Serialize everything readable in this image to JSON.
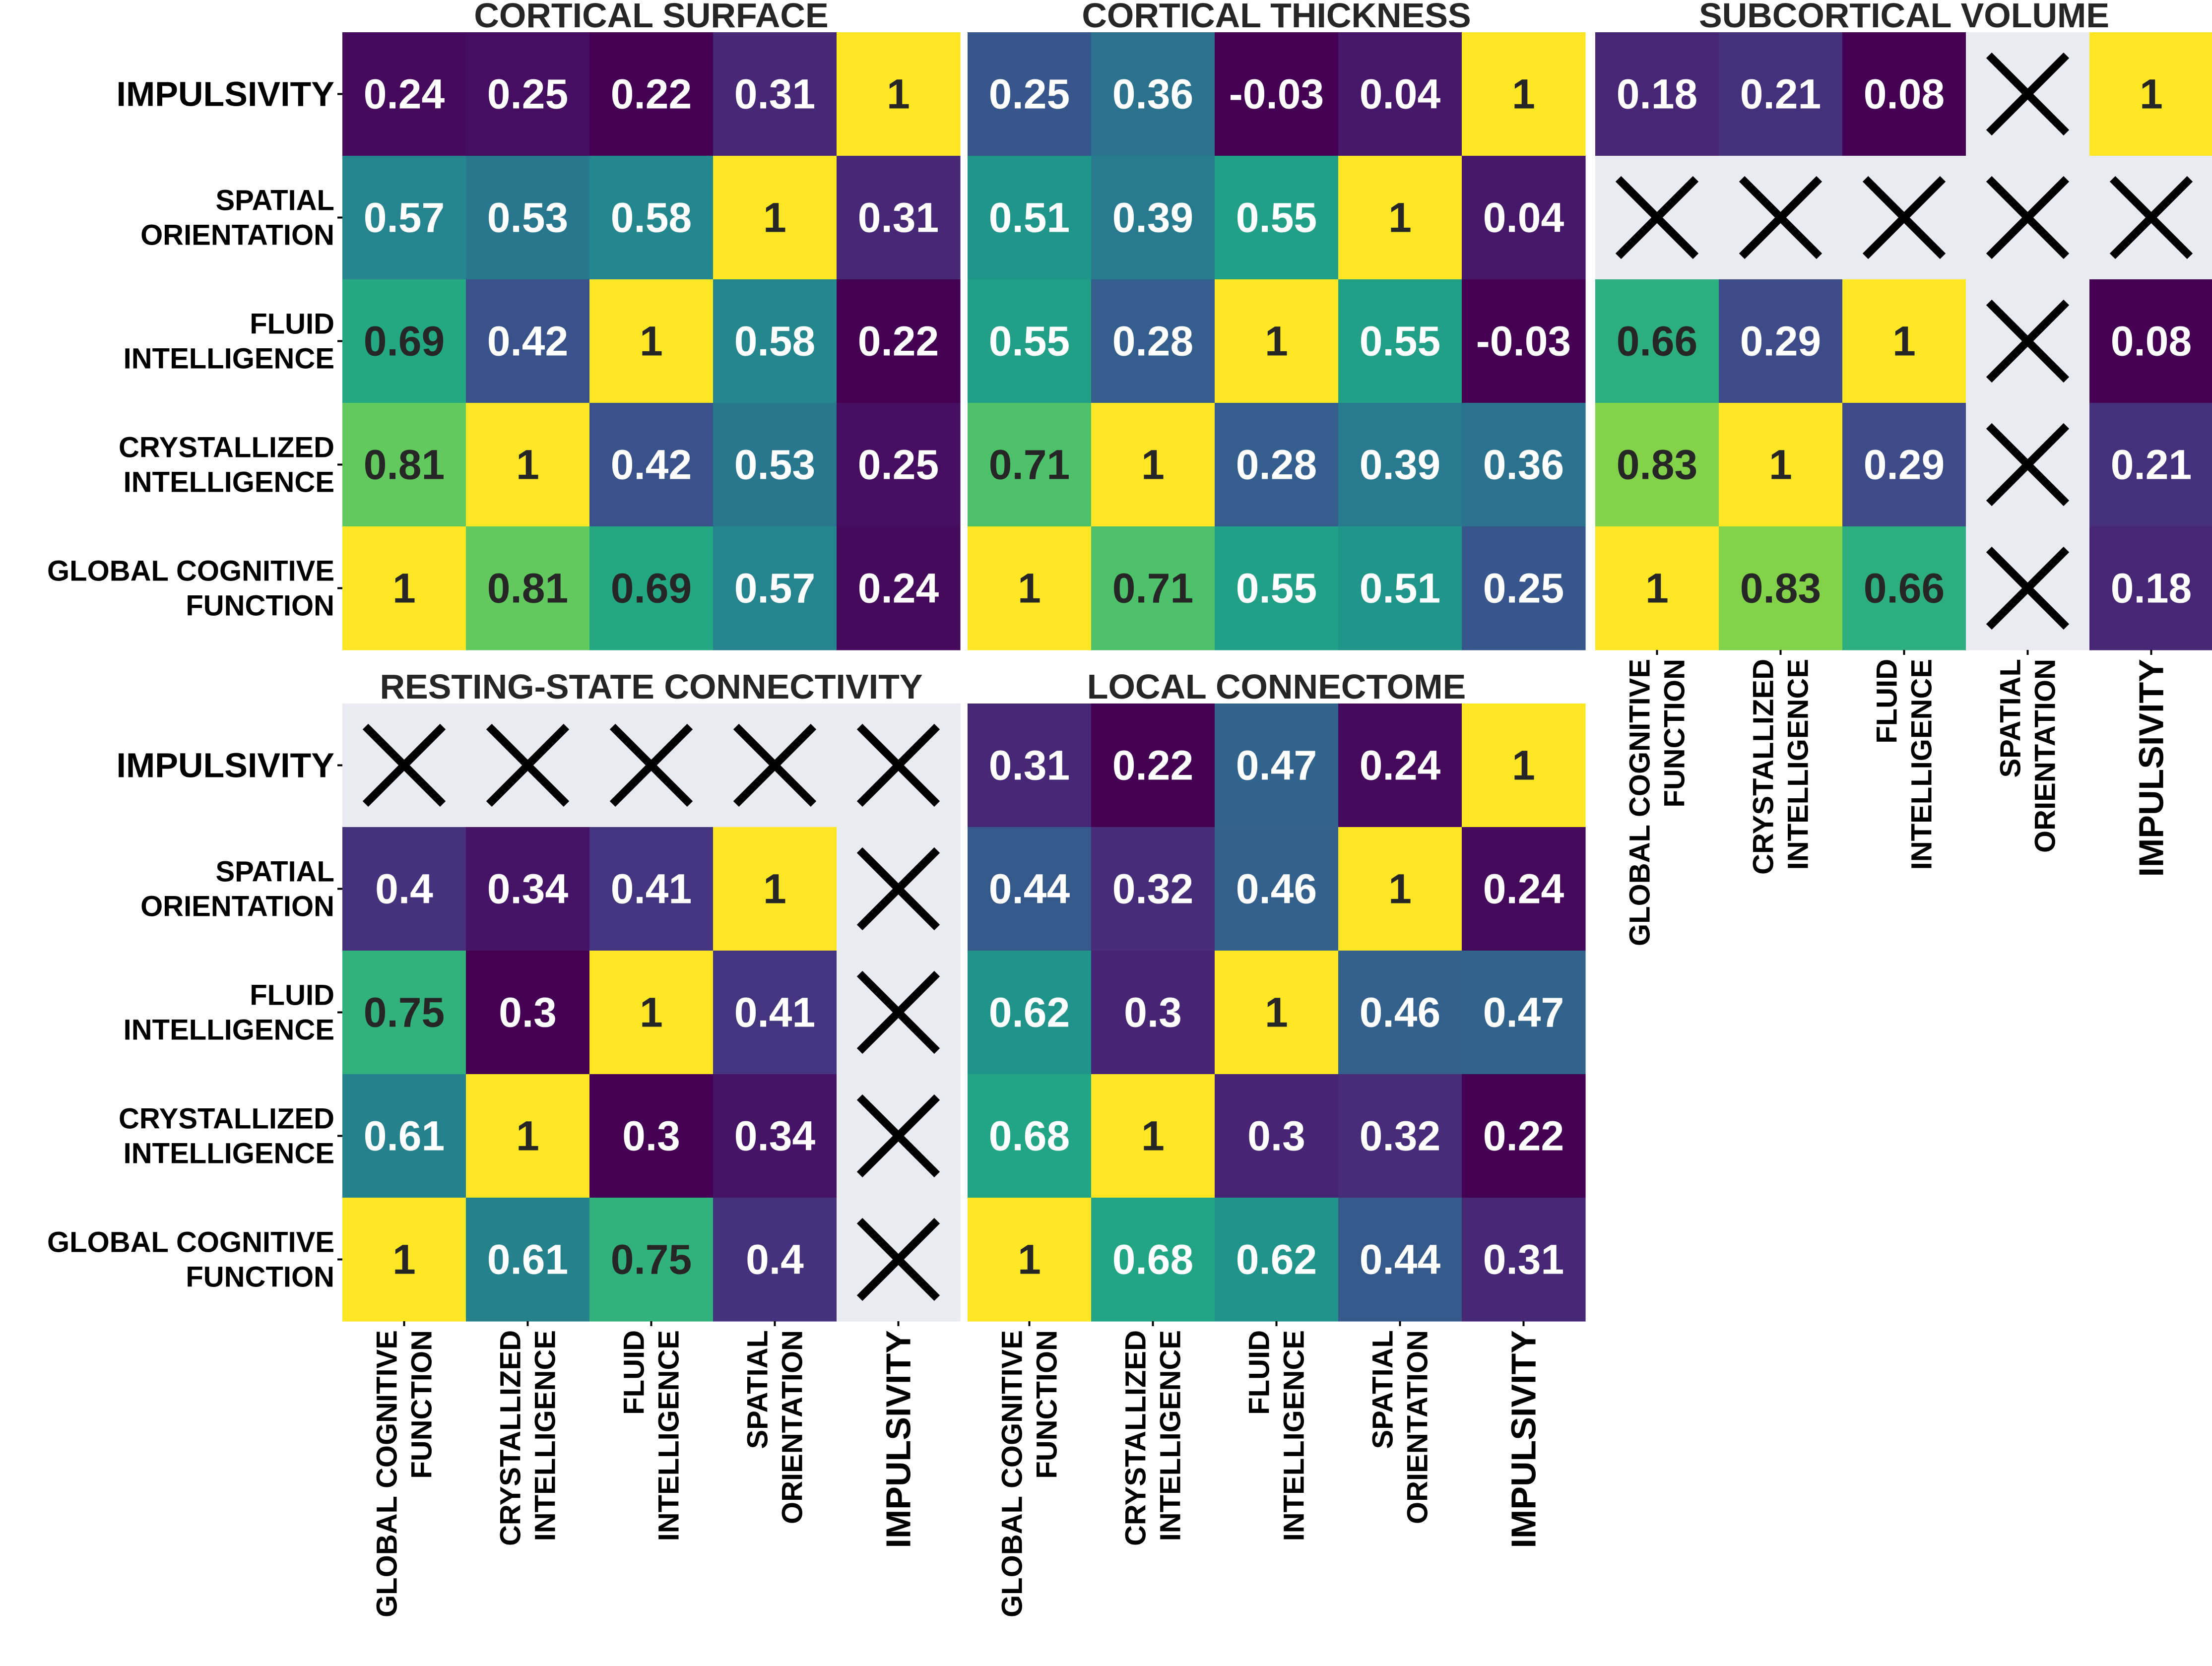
{
  "rows": [
    "IMPULSIVITY",
    "SPATIAL ORIENTATION",
    "FLUID INTELLIGENCE",
    "CRYSTALLIZED INTELLIGENCE",
    "GLOBAL COGNITIVE FUNCTION"
  ],
  "row_label_lines": [
    [
      "IMPULSIVITY"
    ],
    [
      "SPATIAL",
      "ORIENTATION"
    ],
    [
      "FLUID",
      "INTELLIGENCE"
    ],
    [
      "CRYSTALLIZED",
      "INTELLIGENCE"
    ],
    [
      "GLOBAL COGNITIVE",
      "FUNCTION"
    ]
  ],
  "columns": [
    "GLOBAL COGNITIVE FUNCTION",
    "CRYSTALLIZED INTELLIGENCE",
    "FLUID INTELLIGENCE",
    "SPATIAL ORIENTATION",
    "IMPULSIVITY"
  ],
  "col_label_lines": [
    [
      "GLOBAL COGNITIVE",
      "FUNCTION"
    ],
    [
      "CRYSTALLIZED",
      "INTELLIGENCE"
    ],
    [
      "FLUID",
      "INTELLIGENCE"
    ],
    [
      "SPATIAL",
      "ORIENTATION"
    ],
    [
      "IMPULSIVITY"
    ]
  ],
  "missing_marker": "X",
  "colors": {
    "missing_background": "#eaeaf2",
    "light_text": "#ffffff",
    "dark_text": "#262626",
    "colormap": "viridis"
  },
  "chart_data": [
    {
      "type": "heatmap",
      "title": "CORTICAL SURFACE",
      "values": [
        [
          0.24,
          0.25,
          0.22,
          0.31,
          1
        ],
        [
          0.57,
          0.53,
          0.58,
          1,
          0.31
        ],
        [
          0.69,
          0.42,
          1,
          0.58,
          0.22
        ],
        [
          0.81,
          1,
          0.42,
          0.53,
          0.25
        ],
        [
          1,
          0.81,
          0.69,
          0.57,
          0.24
        ]
      ]
    },
    {
      "type": "heatmap",
      "title": "CORTICAL THICKNESS",
      "values": [
        [
          0.25,
          0.36,
          -0.03,
          0.04,
          1
        ],
        [
          0.51,
          0.39,
          0.55,
          1,
          0.04
        ],
        [
          0.55,
          0.28,
          1,
          0.55,
          -0.03
        ],
        [
          0.71,
          1,
          0.28,
          0.39,
          0.36
        ],
        [
          1,
          0.71,
          0.55,
          0.51,
          0.25
        ]
      ]
    },
    {
      "type": "heatmap",
      "title": "SUBCORTICAL VOLUME",
      "values": [
        [
          0.18,
          0.21,
          0.08,
          null,
          1
        ],
        [
          null,
          null,
          null,
          null,
          null
        ],
        [
          0.66,
          0.29,
          1,
          null,
          0.08
        ],
        [
          0.83,
          1,
          0.29,
          null,
          0.21
        ],
        [
          1,
          0.83,
          0.66,
          null,
          0.18
        ]
      ]
    },
    {
      "type": "heatmap",
      "title": "RESTING-STATE CONNECTIVITY",
      "values": [
        [
          null,
          null,
          null,
          null,
          null
        ],
        [
          0.4,
          0.34,
          0.41,
          1,
          null
        ],
        [
          0.75,
          0.3,
          1,
          0.41,
          null
        ],
        [
          0.61,
          1,
          0.3,
          0.34,
          null
        ],
        [
          1,
          0.61,
          0.75,
          0.4,
          null
        ]
      ]
    },
    {
      "type": "heatmap",
      "title": "LOCAL CONNECTOME",
      "values": [
        [
          0.31,
          0.22,
          0.47,
          0.24,
          1
        ],
        [
          0.44,
          0.32,
          0.46,
          1,
          0.24
        ],
        [
          0.62,
          0.3,
          1,
          0.46,
          0.47
        ],
        [
          0.68,
          1,
          0.3,
          0.32,
          0.22
        ],
        [
          1,
          0.68,
          0.62,
          0.44,
          0.31
        ]
      ]
    }
  ]
}
